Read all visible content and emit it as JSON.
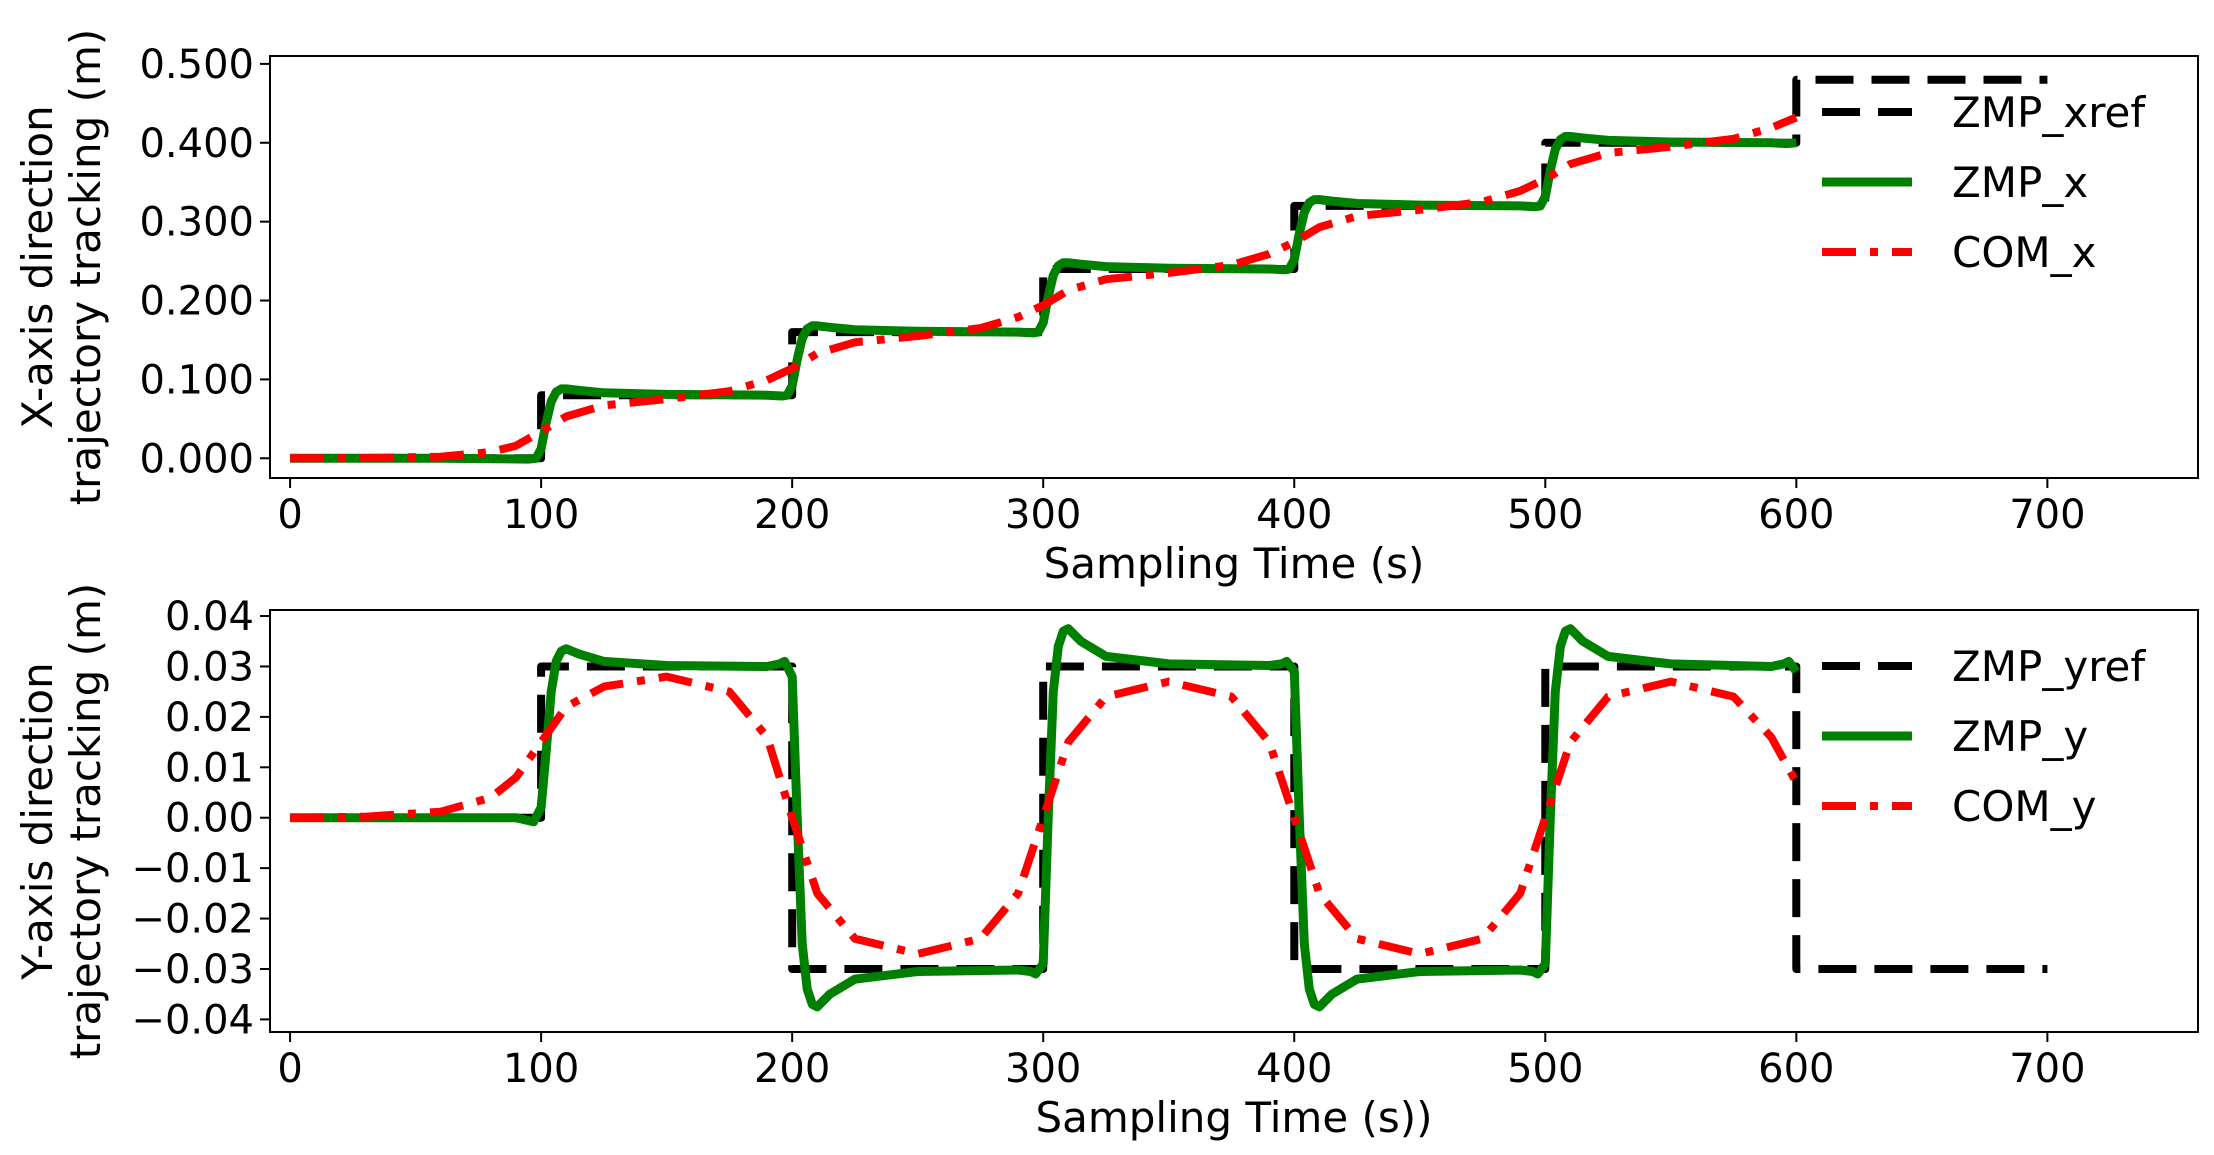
{
  "chart_data": [
    {
      "type": "line",
      "title": "",
      "xlabel": "Sampling Time (s)",
      "ylabel_lines": [
        "X-axis direction",
        "trajectory tracking (m)"
      ],
      "xlim": [
        -8,
        760
      ],
      "ylim": [
        -0.025,
        0.51
      ],
      "xticks": [
        0,
        100,
        200,
        300,
        400,
        500,
        600,
        700
      ],
      "xtick_labels": [
        "0",
        "100",
        "200",
        "300",
        "400",
        "500",
        "600",
        "700"
      ],
      "yticks": [
        0,
        0.1,
        0.2,
        0.3,
        0.4,
        0.5
      ],
      "ytick_labels": [
        "0.000",
        "0.100",
        "0.200",
        "0.300",
        "0.400",
        "0.500"
      ],
      "legend_position": "top-right",
      "series": [
        {
          "name": "ZMP_xref",
          "color": "#000000",
          "style": "dashed",
          "x": [
            0,
            100,
            100,
            200,
            200,
            300,
            300,
            400,
            400,
            500,
            500,
            600,
            600,
            700
          ],
          "y": [
            0,
            0,
            0.08,
            0.08,
            0.16,
            0.16,
            0.24,
            0.24,
            0.32,
            0.32,
            0.4,
            0.4,
            0.48,
            0.48
          ]
        },
        {
          "name": "ZMP_x",
          "color": "#008000",
          "style": "solid",
          "x": [
            0,
            60,
            95,
            98,
            100,
            102,
            104,
            106,
            108,
            110,
            115,
            125,
            150,
            190,
            196,
            198,
            200,
            202,
            204,
            206,
            208,
            210,
            215,
            225,
            250,
            290,
            296,
            298,
            300,
            302,
            304,
            306,
            308,
            310,
            315,
            325,
            350,
            390,
            396,
            398,
            400,
            402,
            404,
            406,
            408,
            410,
            415,
            425,
            450,
            490,
            496,
            498,
            500,
            502,
            504,
            506,
            508,
            510,
            515,
            525,
            550,
            590,
            596,
            600
          ],
          "y": [
            0,
            0,
            -0.001,
            0,
            0.012,
            0.045,
            0.072,
            0.084,
            0.088,
            0.088,
            0.086,
            0.083,
            0.081,
            0.08,
            0.079,
            0.08,
            0.092,
            0.125,
            0.152,
            0.164,
            0.168,
            0.168,
            0.166,
            0.163,
            0.161,
            0.16,
            0.159,
            0.16,
            0.172,
            0.205,
            0.232,
            0.244,
            0.248,
            0.248,
            0.246,
            0.243,
            0.241,
            0.24,
            0.239,
            0.24,
            0.252,
            0.285,
            0.312,
            0.324,
            0.328,
            0.328,
            0.326,
            0.323,
            0.321,
            0.32,
            0.319,
            0.32,
            0.332,
            0.365,
            0.392,
            0.404,
            0.408,
            0.408,
            0.406,
            0.403,
            0.401,
            0.4,
            0.399,
            0.4
          ]
        },
        {
          "name": "COM_x",
          "color": "#ff0000",
          "style": "dashdot",
          "x": [
            0,
            30,
            60,
            80,
            90,
            100,
            110,
            125,
            150,
            175,
            190,
            200,
            210,
            225,
            250,
            275,
            290,
            300,
            310,
            325,
            350,
            375,
            390,
            400,
            410,
            425,
            450,
            475,
            490,
            500,
            510,
            525,
            550,
            575,
            590,
            600
          ],
          "y": [
            0,
            0.0003,
            0.002,
            0.008,
            0.016,
            0.034,
            0.053,
            0.067,
            0.075,
            0.085,
            0.099,
            0.114,
            0.133,
            0.147,
            0.155,
            0.165,
            0.179,
            0.194,
            0.213,
            0.227,
            0.235,
            0.245,
            0.259,
            0.274,
            0.293,
            0.307,
            0.315,
            0.325,
            0.339,
            0.354,
            0.373,
            0.387,
            0.395,
            0.405,
            0.419,
            0.432
          ]
        }
      ]
    },
    {
      "type": "line",
      "title": "",
      "xlabel": "Sampling Time (s))",
      "ylabel_lines": [
        "Y-axis direction",
        "trajectory tracking (m)"
      ],
      "xlim": [
        -8,
        760
      ],
      "ylim": [
        -0.0425,
        0.0412
      ],
      "xticks": [
        0,
        100,
        200,
        300,
        400,
        500,
        600,
        700
      ],
      "xtick_labels": [
        "0",
        "100",
        "200",
        "300",
        "400",
        "500",
        "600",
        "700"
      ],
      "yticks": [
        0.04,
        0.03,
        0.02,
        0.01,
        0.0,
        -0.01,
        -0.02,
        -0.03,
        -0.04
      ],
      "ytick_labels": [
        "0.04",
        "0.03",
        "0.02",
        "0.01",
        "0.00",
        "−0.01",
        "−0.02",
        "−0.03",
        "−0.04"
      ],
      "legend_position": "top-right",
      "series": [
        {
          "name": "ZMP_yref",
          "color": "#000000",
          "style": "dashed",
          "x": [
            0,
            100,
            100,
            200,
            200,
            300,
            300,
            400,
            400,
            500,
            500,
            600,
            600,
            700
          ],
          "y": [
            0,
            0,
            0.03,
            0.03,
            -0.03,
            -0.03,
            0.03,
            0.03,
            -0.03,
            -0.03,
            0.03,
            0.03,
            -0.03,
            -0.03
          ]
        },
        {
          "name": "ZMP_y",
          "color": "#008000",
          "style": "solid",
          "x": [
            0,
            90,
            97,
            100,
            102,
            104,
            106,
            108,
            110,
            115,
            125,
            150,
            190,
            195,
            197,
            200,
            202,
            204,
            206,
            208,
            210,
            215,
            225,
            250,
            290,
            295,
            297,
            300,
            302,
            304,
            306,
            308,
            310,
            315,
            325,
            350,
            390,
            395,
            397,
            400,
            402,
            404,
            406,
            408,
            410,
            415,
            425,
            450,
            490,
            495,
            497,
            500,
            502,
            504,
            506,
            508,
            510,
            515,
            525,
            550,
            590,
            595,
            597,
            600
          ],
          "y": [
            0,
            0,
            -0.0008,
            0.002,
            0.013,
            0.025,
            0.031,
            0.033,
            0.0335,
            0.0325,
            0.031,
            0.0302,
            0.03,
            0.0305,
            0.031,
            0.028,
            0.0,
            -0.025,
            -0.034,
            -0.037,
            -0.0375,
            -0.035,
            -0.032,
            -0.0305,
            -0.0302,
            -0.0305,
            -0.031,
            -0.029,
            0.0,
            0.025,
            0.034,
            0.037,
            0.0375,
            0.035,
            0.032,
            0.0305,
            0.0302,
            0.0305,
            0.031,
            0.029,
            0.0,
            -0.025,
            -0.034,
            -0.037,
            -0.0375,
            -0.035,
            -0.032,
            -0.0305,
            -0.0302,
            -0.0305,
            -0.031,
            -0.029,
            0.0,
            0.025,
            0.034,
            0.037,
            0.0375,
            0.035,
            0.032,
            0.0305,
            0.03,
            0.0305,
            0.031,
            0.029
          ]
        },
        {
          "name": "COM_y",
          "color": "#ff0000",
          "style": "dashdot",
          "x": [
            0,
            30,
            60,
            80,
            90,
            100,
            110,
            125,
            150,
            175,
            190,
            200,
            210,
            225,
            250,
            275,
            290,
            300,
            310,
            325,
            350,
            375,
            390,
            400,
            410,
            425,
            450,
            475,
            490,
            500,
            510,
            525,
            550,
            575,
            590,
            600
          ],
          "y": [
            0,
            0.0002,
            0.0012,
            0.004,
            0.008,
            0.015,
            0.022,
            0.026,
            0.028,
            0.025,
            0.016,
            0.0,
            -0.015,
            -0.024,
            -0.027,
            -0.024,
            -0.015,
            0.0,
            0.015,
            0.024,
            0.027,
            0.024,
            0.015,
            0.0,
            -0.015,
            -0.024,
            -0.027,
            -0.024,
            -0.015,
            0.0,
            0.015,
            0.024,
            0.027,
            0.024,
            0.016,
            0.007
          ]
        }
      ]
    }
  ]
}
